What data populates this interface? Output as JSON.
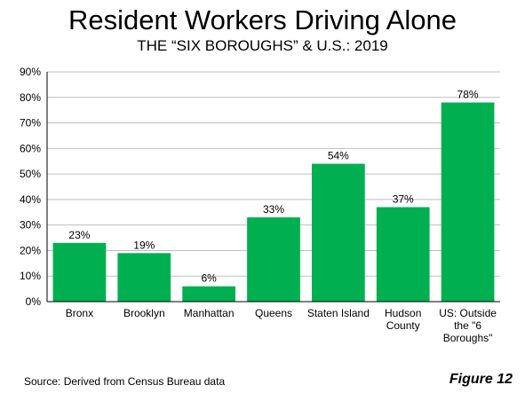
{
  "chart_data": {
    "type": "bar",
    "title": "Resident Workers Driving Alone",
    "subtitle": "THE “SIX BOROUGHS” & U.S.: 2019",
    "categories": [
      [
        "Bronx"
      ],
      [
        "Brooklyn"
      ],
      [
        "Manhattan"
      ],
      [
        "Queens"
      ],
      [
        "Staten Island"
      ],
      [
        "Hudson",
        "County"
      ],
      [
        "US: Outside",
        "the \"6",
        "Boroughs\""
      ]
    ],
    "values": [
      0.23,
      0.19,
      0.06,
      0.33,
      0.54,
      0.37,
      0.78
    ],
    "value_labels": [
      "23%",
      "19%",
      "6%",
      "33%",
      "54%",
      "37%",
      "78%"
    ],
    "yticks": [
      "0%",
      "10%",
      "20%",
      "30%",
      "40%",
      "50%",
      "60%",
      "70%",
      "80%",
      "90%"
    ],
    "ylim": [
      0,
      0.9
    ],
    "grid": true,
    "bar_color": "#00b050",
    "grid_color": "#bfbfbf"
  },
  "footer": {
    "source": "Source: Derived from Census Bureau data",
    "figure": "Figure 12"
  }
}
